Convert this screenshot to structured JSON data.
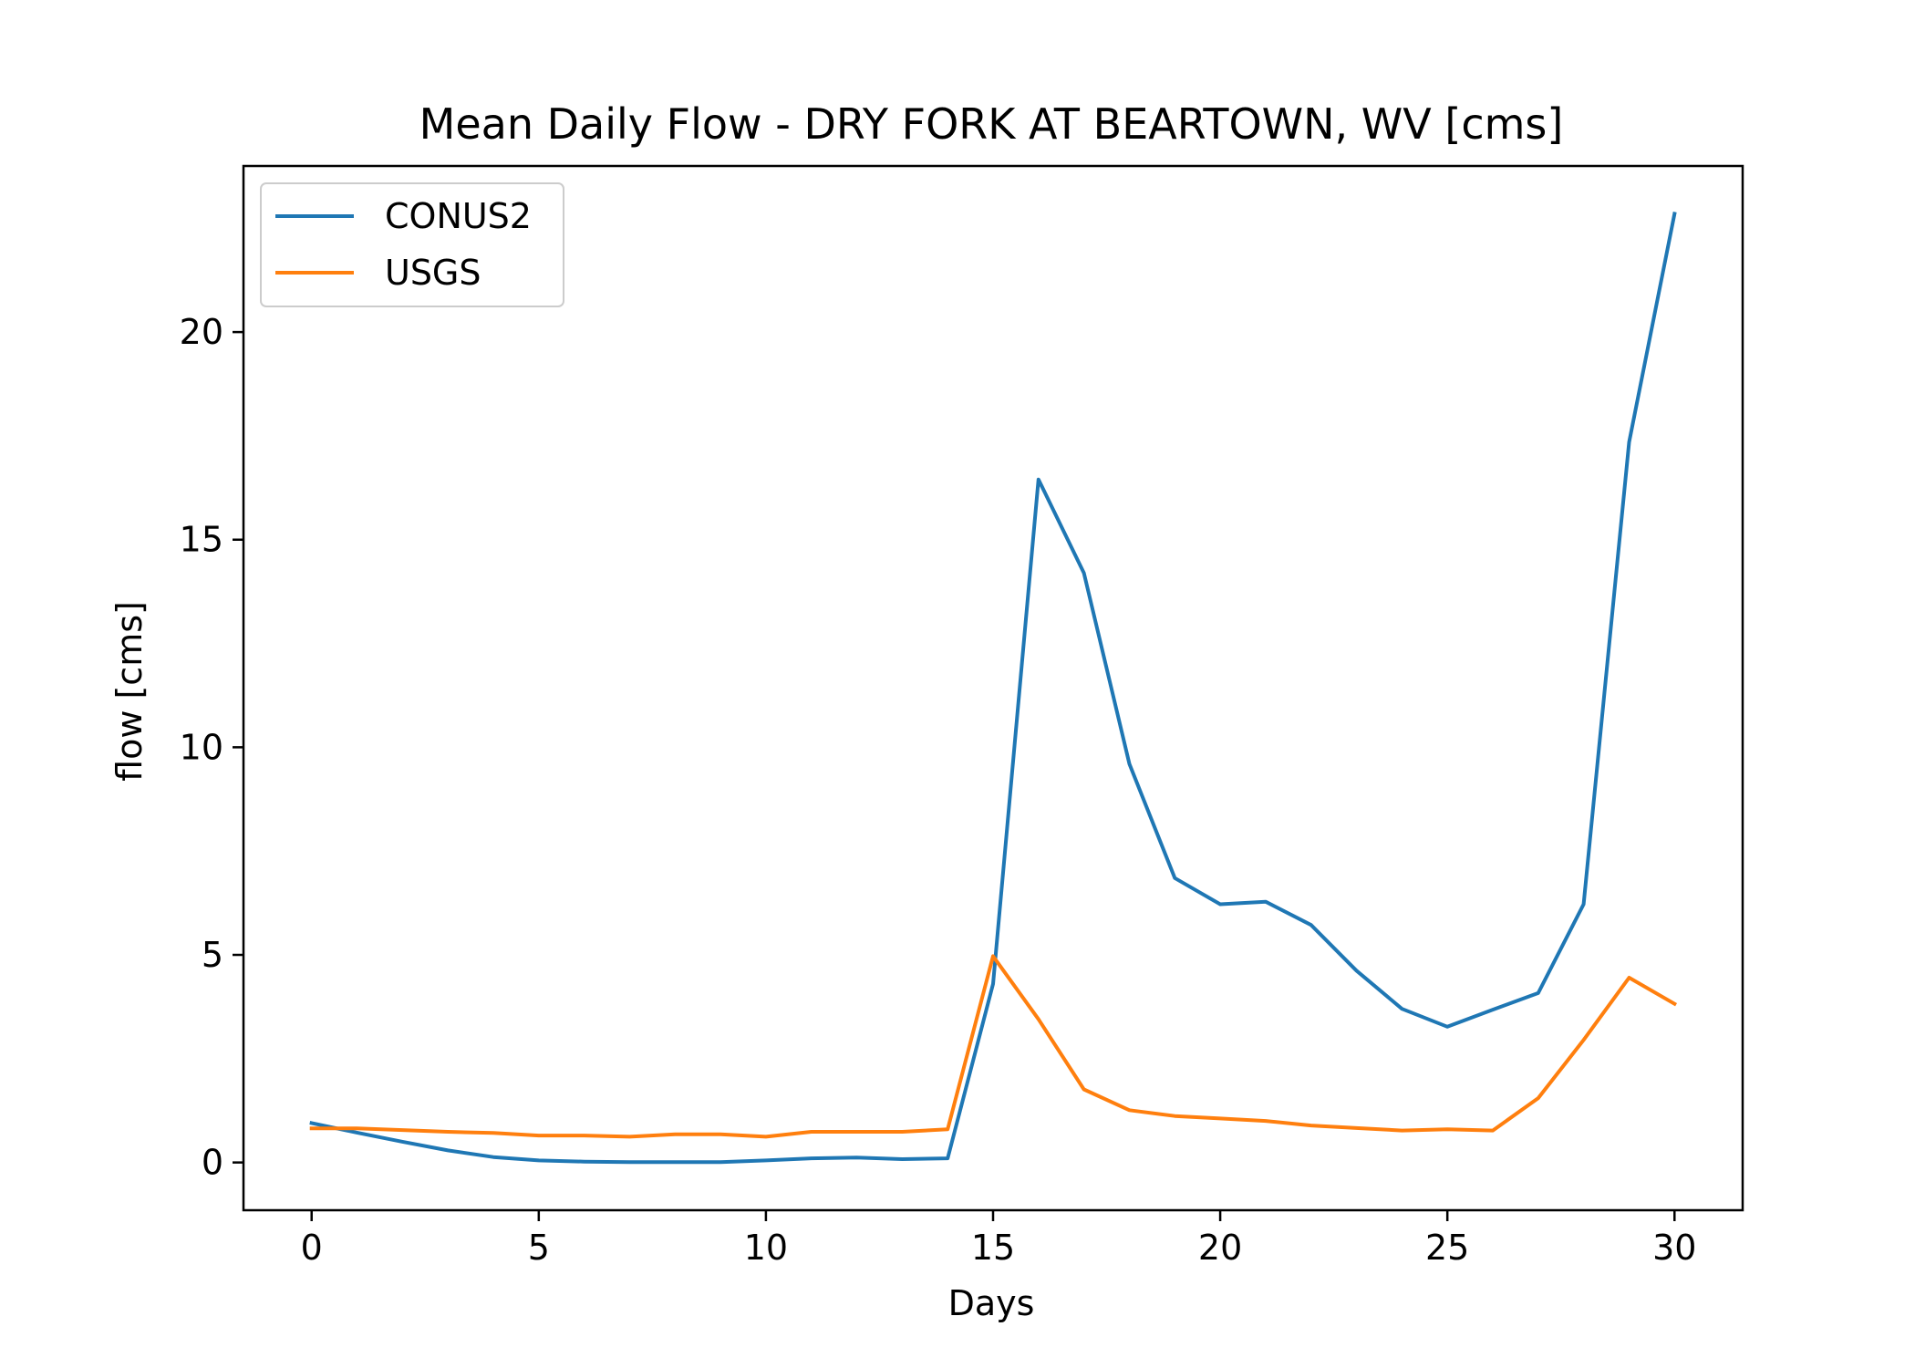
{
  "chart_data": {
    "type": "line",
    "title": "Mean Daily Flow - DRY FORK AT BEARTOWN, WV [cms]",
    "xlabel": "Days",
    "ylabel": "flow [cms]",
    "xlim": [
      -1.5,
      31.5
    ],
    "ylim": [
      -1.15,
      24.0
    ],
    "xticks": [
      0,
      5,
      10,
      15,
      20,
      25,
      30
    ],
    "yticks": [
      0,
      5,
      10,
      15,
      20
    ],
    "grid": false,
    "legend_position": "upper-left",
    "x": [
      0,
      1,
      2,
      3,
      4,
      5,
      6,
      7,
      8,
      9,
      10,
      11,
      12,
      13,
      14,
      15,
      16,
      17,
      18,
      19,
      20,
      21,
      22,
      23,
      24,
      25,
      26,
      27,
      28,
      29,
      30
    ],
    "series": [
      {
        "name": "CONUS2",
        "color": "#1f77b4",
        "values": [
          0.95,
          0.72,
          0.5,
          0.29,
          0.13,
          0.05,
          0.02,
          0.01,
          0.01,
          0.01,
          0.05,
          0.1,
          0.12,
          0.08,
          0.1,
          4.3,
          16.45,
          14.2,
          9.6,
          6.85,
          6.22,
          6.28,
          5.72,
          4.62,
          3.7,
          3.27,
          3.68,
          4.08,
          6.22,
          17.35,
          22.85
        ]
      },
      {
        "name": "USGS",
        "color": "#ff7f0e",
        "values": [
          0.82,
          0.82,
          0.78,
          0.74,
          0.71,
          0.65,
          0.65,
          0.62,
          0.68,
          0.68,
          0.62,
          0.74,
          0.74,
          0.74,
          0.8,
          4.97,
          3.45,
          1.76,
          1.26,
          1.12,
          1.06,
          1.0,
          0.89,
          0.83,
          0.77,
          0.8,
          0.77,
          1.55,
          2.95,
          4.45,
          3.82
        ]
      }
    ]
  }
}
